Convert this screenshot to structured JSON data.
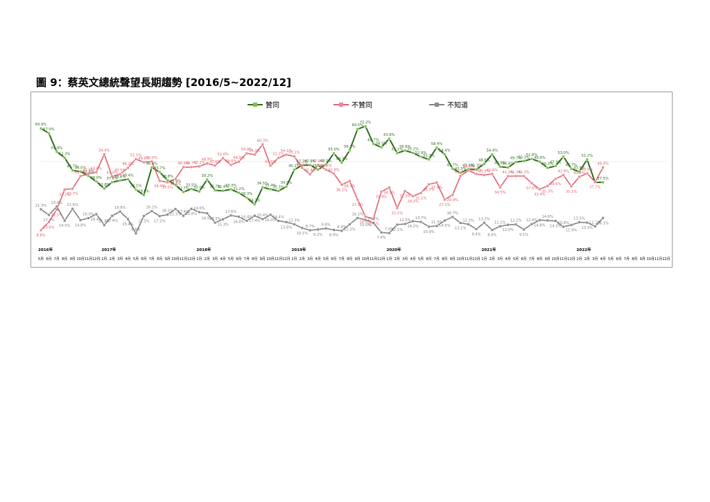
{
  "page_title": "圖 9：蔡英文總統聲望長期趨勢 [2016/5~2022/12]",
  "chart_data": {
    "type": "line",
    "title": "",
    "xlabel": "",
    "ylabel": "",
    "ylim": [
      0,
      75
    ],
    "grid": false,
    "legend_position": "top",
    "month_labels": [
      "5月",
      "6月",
      "7月",
      "8月",
      "9月",
      "10月",
      "11月",
      "12月",
      "1月",
      "2月",
      "3月",
      "4月",
      "5月",
      "6月",
      "7月",
      "8月",
      "9月",
      "10月",
      "11月",
      "12月",
      "1月",
      "2月",
      "3月",
      "4月",
      "5月",
      "6月",
      "7月",
      "8月",
      "9月",
      "10月",
      "11月",
      "12月",
      "1月",
      "2月",
      "3月",
      "4月",
      "5月",
      "6月",
      "7月",
      "8月",
      "9月",
      "10月",
      "11月",
      "12月",
      "1月",
      "2月",
      "3月",
      "4月",
      "5月",
      "6月",
      "7月",
      "8月",
      "9月",
      "10月",
      "11月",
      "12月",
      "1月",
      "2月",
      "3月",
      "4月",
      "5月",
      "6月",
      "7月",
      "8月",
      "9月",
      "10月",
      "11月",
      "12月",
      "1月",
      "2月",
      "3月",
      "4月",
      "5月",
      "6月",
      "7月",
      "8月",
      "9月",
      "10月",
      "11月",
      "12月"
    ],
    "year_labels": [
      {
        "label": "2016年",
        "index": 0
      },
      {
        "label": "2017年",
        "index": 8
      },
      {
        "label": "2018年",
        "index": 20
      },
      {
        "label": "2019年",
        "index": 32
      },
      {
        "label": "2020年",
        "index": 44
      },
      {
        "label": "2021年",
        "index": 56
      },
      {
        "label": "2022年",
        "index": 68
      }
    ],
    "series": [
      {
        "name": "贊同",
        "color": "#2e6b1f",
        "marker_color": "#7cc043",
        "values": [
          69.9,
          67.0,
          55.9,
          52.3,
          44.7,
          44.0,
          41.4,
          38.0,
          33.8,
          37.6,
          38.6,
          39.4,
          33.1,
          29.8,
          46.4,
          43.7,
          38.8,
          35.9,
          31.7,
          33.5,
          32.0,
          39.2,
          32.7,
          32.4,
          33.3,
          31.2,
          28.3,
          24.3,
          34.5,
          33.4,
          32.3,
          34.9,
          45.1,
          47.7,
          47.9,
          45.1,
          48.2,
          55.0,
          49.3,
          56.7,
          69.5,
          71.2,
          60.7,
          58.5,
          63.8,
          55.1,
          56.6,
          55.2,
          52.9,
          51.3,
          58.4,
          54.4,
          45.7,
          43.3,
          45.4,
          45.3,
          48.6,
          54.4,
          46.9,
          46.4,
          49.7,
          50.3,
          51.6,
          49.9,
          46.2,
          47.3,
          53.0,
          45.7,
          43.9,
          51.2,
          37.5,
          37.5
        ],
        "labels": [
          "69.9%",
          "67.0%",
          "55.9%",
          "52.3%",
          "44.7%",
          "44.0%",
          "41.4%",
          "38.0%",
          "33.8%",
          "37.6%",
          "38.6%",
          "39.4%",
          "33.1%",
          "29.8%",
          "46.4%",
          "43.7%",
          "38.8%",
          "35.9%",
          "31.7%",
          "33.5%",
          "32.0%",
          "39.2%",
          "32.7%",
          "32.4%",
          "33.3%",
          "31.2%",
          "28.3%",
          "24.3%",
          "34.5%",
          "33.4%",
          "32.3%",
          "34.9%",
          "45.1%",
          "47.7%",
          "47.9%",
          "45.1%",
          "48.2%",
          "55.0%",
          "49.3%",
          "56.7%",
          "69.5%",
          "71.2%",
          "60.7%",
          "58.5%",
          "63.8%",
          "55.1%",
          "56.6%",
          "55.2%",
          "52.9%",
          "51.3%",
          "58.4%",
          "54.4%",
          "45.7%",
          "43.3%",
          "45.4%",
          "45.3%",
          "48.6%",
          "54.4%",
          "46.9%",
          "46.4%",
          "49.7%",
          "50.3%",
          "51.6%",
          "49.9%",
          "46.2%",
          "47.3%",
          "53.0%",
          "45.7%",
          "43.9%",
          "51.2%",
          "",
          "37.5%"
        ]
      },
      {
        "name": "不贊同",
        "color": "#e0606e",
        "marker_color": "#e58a96",
        "values": [
          8.8,
          13.6,
          21.1,
          33.2,
          33.7,
          41.2,
          42.6,
          43.6,
          54.4,
          41.0,
          42.5,
          46.2,
          51.5,
          49.6,
          50.0,
          38.4,
          37.5,
          39.6,
          46.6,
          46.7,
          47.1,
          48.9,
          47.6,
          52.0,
          48.0,
          49.9,
          54.9,
          54.2,
          60.3,
          47.5,
          52.2,
          54.1,
          53.1,
          46.2,
          42.4,
          47.9,
          45.2,
          42.8,
          36.1,
          38.3,
          27.1,
          16.9,
          15.6,
          31.9,
          34.4,
          22.1,
          32.3,
          29.2,
          31.1,
          36.3,
          37.4,
          27.1,
          29.9,
          41.3,
          44.6,
          42.5,
          41.9,
          42.6,
          34.5,
          41.2,
          41.3,
          41.3,
          37.0,
          33.4,
          35.3,
          39.6,
          41.9,
          35.1,
          40.8,
          42.9,
          37.7,
          46.4
        ],
        "labels": [
          "8.8%",
          "13.6%",
          "21.1%",
          "33.2%",
          "33.7%",
          "41.2%",
          "42.6%",
          "43.6%",
          "54.4%",
          "41.0%",
          "42.5%",
          "46.2%",
          "51.5%",
          "49.6%",
          "50.0%",
          "38.4%",
          "37.5%",
          "39.6%",
          "46.6%",
          "46.7%",
          "47.1%",
          "48.9%",
          "47.6%",
          "52.0%",
          "48.0%",
          "49.9%",
          "54.9%",
          "54.2%",
          "60.3%",
          "47.5%",
          "52.2%",
          "54.1%",
          "53.1%",
          "46.2%",
          "42.4%",
          "47.9%",
          "45.2%",
          "42.8%",
          "36.1%",
          "38.3%",
          "27.1%",
          "16.9%",
          "15.6%",
          "31.9%",
          "34.4%",
          "22.1%",
          "32.3%",
          "29.2%",
          "31.1%",
          "36.3%",
          "37.4%",
          "27.1%",
          "29.9%",
          "41.3%",
          "44.6%",
          "42.5%",
          "41.9%",
          "42.6%",
          "34.5%",
          "41.2%",
          "41.3%",
          "41.3%",
          "37.0%",
          "33.4%",
          "35.3%",
          "39.6%",
          "41.9%",
          "35.1%",
          "40.8%",
          "42.9%",
          "37.7%",
          "46.4%"
        ]
      },
      {
        "name": "不知道",
        "color": "#7f7f7f",
        "marker_color": "#8c8c8c",
        "values": [
          21.3,
          17.9,
          23.0,
          14.5,
          21.6,
          14.8,
          16.0,
          18.4,
          11.8,
          17.4,
          19.9,
          15.4,
          6.8,
          17.3,
          20.2,
          17.2,
          18.1,
          21.5,
          17.4,
          21.6,
          19.6,
          18.9,
          13.3,
          15.3,
          17.6,
          16.8,
          14.4,
          17.4,
          15.4,
          18.0,
          14.4,
          13.6,
          12.3,
          10.1,
          8.7,
          9.2,
          9.8,
          8.9,
          8.4,
          12.3,
          16.1,
          15.0,
          13.2,
          7.4,
          7.0,
          12.1,
          12.5,
          14.2,
          13.7,
          10.9,
          11.3,
          14.5,
          16.7,
          13.1,
          12.3,
          9.4,
          13.2,
          8.9,
          11.1,
          12.0,
          12.2,
          9.1,
          12.4,
          14.8,
          14.6,
          14.3,
          10.8,
          11.9,
          13.5,
          13.3,
          11.1,
          16.1
        ],
        "labels": [
          "21.3%",
          "17.9%",
          "23.0%",
          "14.5%",
          "21.6%",
          "14.8%",
          "16.0%",
          "18.4%",
          "11.8%",
          "17.4%",
          "19.9%",
          "15.4%",
          "6.8%",
          "17.3%",
          "20.2%",
          "17.2%",
          "18.1%",
          "21.5%",
          "17.4%",
          "21.6%",
          "19.6%",
          "18.9%",
          "13.3%",
          "15.3%",
          "17.6%",
          "16.8%",
          "14.4%",
          "17.4%",
          "15.4%",
          "18.0%",
          "14.4%",
          "13.6%",
          "12.3%",
          "10.1%",
          "8.7%",
          "9.2%",
          "9.8%",
          "8.9%",
          "8.4%",
          "12.3%",
          "16.1%",
          "15.0%",
          "13.2%",
          "7.4%",
          "7.0%",
          "12.1%",
          "12.5%",
          "14.2%",
          "13.7%",
          "10.9%",
          "11.3%",
          "14.5%",
          "16.7%",
          "13.1%",
          "12.3%",
          "9.4%",
          "13.2%",
          "8.9%",
          "11.1%",
          "12.0%",
          "12.2%",
          "9.1%",
          "12.4%",
          "14.8%",
          "14.6%",
          "14.3%",
          "10.8%",
          "11.9%",
          "13.5%",
          "13.3%",
          "11.1%",
          "16.1%"
        ]
      }
    ]
  }
}
